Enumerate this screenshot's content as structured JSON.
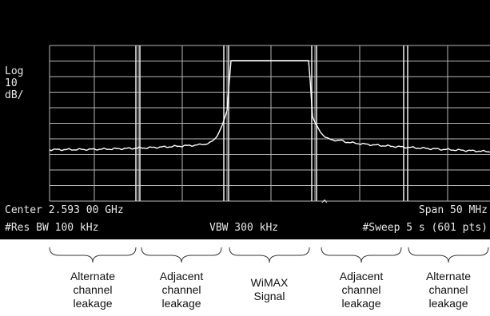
{
  "screen": {
    "scale_label": "Log\n10\ndB/",
    "center": "Center 2.593 00 GHz",
    "span": "Span 50 MHz",
    "res_bw": "#Res BW 100 kHz",
    "vbw": "VBW 300 kHz",
    "sweep": "#Sweep 5 s (601 pts)",
    "marker": "^",
    "colors": {
      "background": "#000000",
      "trace": "#ffffff",
      "grid": "#b8b8b8",
      "text": "#e8e8e8"
    }
  },
  "regions": [
    {
      "id": "alternate-left",
      "label": "Alternate\nchannel\nleakage"
    },
    {
      "id": "adjacent-left",
      "label": "Adjacent\nchannel\nleakage"
    },
    {
      "id": "wimax-signal",
      "label": "WiMAX\nSignal"
    },
    {
      "id": "adjacent-right",
      "label": "Adjacent\nchannel\nleakage"
    },
    {
      "id": "alternate-right",
      "label": "Alternate\nchannel\nleakage"
    }
  ]
}
